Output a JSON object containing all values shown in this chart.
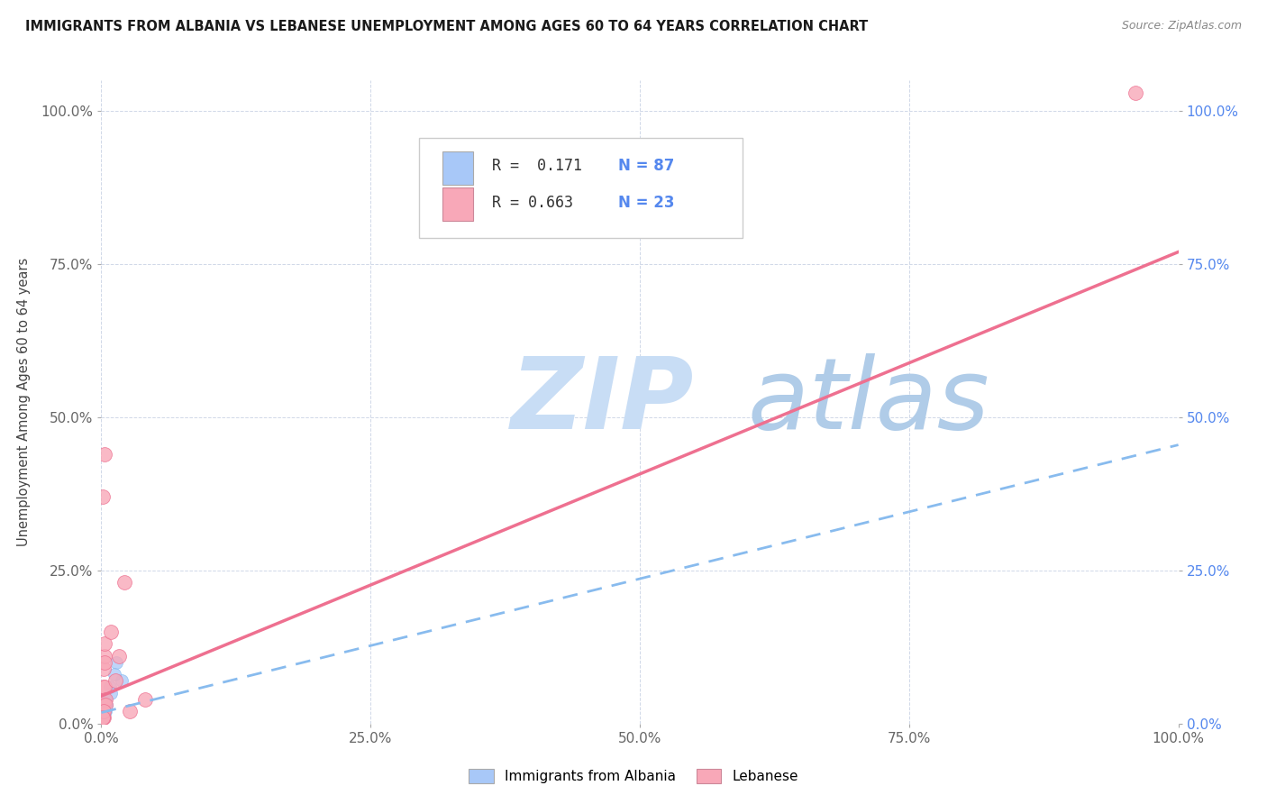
{
  "title": "IMMIGRANTS FROM ALBANIA VS LEBANESE UNEMPLOYMENT AMONG AGES 60 TO 64 YEARS CORRELATION CHART",
  "source": "Source: ZipAtlas.com",
  "ylabel": "Unemployment Among Ages 60 to 64 years",
  "r_albania": 0.171,
  "n_albania": 87,
  "r_lebanese": 0.663,
  "n_lebanese": 23,
  "color_albania": "#a8c8f8",
  "color_lebanese": "#f8a8b8",
  "line_albania_color": "#88bbee",
  "line_lebanese_color": "#ee7090",
  "watermark_zip": "ZIP",
  "watermark_atlas": "atlas",
  "watermark_color_zip": "#c8ddf5",
  "watermark_color_atlas": "#b0cce8",
  "albania_x": [
    0.002,
    0.003,
    0.001,
    0.004,
    0.002,
    0.001,
    0.003,
    0.002,
    0.003,
    0.001,
    0.004,
    0.003,
    0.002,
    0.001,
    0.002,
    0.003,
    0.001,
    0.002,
    0.001,
    0.003,
    0.003,
    0.002,
    0.001,
    0.003,
    0.002,
    0.001,
    0.002,
    0.003,
    0.001,
    0.002,
    0.004,
    0.003,
    0.002,
    0.001,
    0.002,
    0.001,
    0.003,
    0.002,
    0.001,
    0.002,
    0.001,
    0.003,
    0.002,
    0.001,
    0.003,
    0.002,
    0.004,
    0.001,
    0.002,
    0.003,
    0.001,
    0.002,
    0.001,
    0.003,
    0.002,
    0.001,
    0.004,
    0.002,
    0.001,
    0.003,
    0.002,
    0.001,
    0.002,
    0.003,
    0.001,
    0.002,
    0.003,
    0.001,
    0.002,
    0.001,
    0.003,
    0.002,
    0.001,
    0.002,
    0.003,
    0.014,
    0.001,
    0.002,
    0.003,
    0.019,
    0.008,
    0.005,
    0.012,
    0.004,
    0.001,
    0.009,
    0.002
  ],
  "albania_y": [
    0.02,
    0.04,
    0.02,
    0.03,
    0.01,
    0.01,
    0.04,
    0.02,
    0.04,
    0.01,
    0.03,
    0.02,
    0.01,
    0.01,
    0.02,
    0.03,
    0.01,
    0.02,
    0.01,
    0.02,
    0.04,
    0.02,
    0.01,
    0.03,
    0.02,
    0.01,
    0.02,
    0.03,
    0.01,
    0.02,
    0.04,
    0.03,
    0.02,
    0.01,
    0.02,
    0.01,
    0.03,
    0.02,
    0.01,
    0.02,
    0.01,
    0.03,
    0.02,
    0.01,
    0.03,
    0.02,
    0.04,
    0.01,
    0.01,
    0.03,
    0.01,
    0.02,
    0.01,
    0.02,
    0.02,
    0.01,
    0.04,
    0.02,
    0.01,
    0.03,
    0.02,
    0.01,
    0.02,
    0.03,
    0.01,
    0.02,
    0.03,
    0.01,
    0.02,
    0.01,
    0.03,
    0.02,
    0.01,
    0.02,
    0.03,
    0.1,
    0.01,
    0.02,
    0.04,
    0.07,
    0.06,
    0.03,
    0.08,
    0.02,
    0.01,
    0.05,
    0.02
  ],
  "lebanese_x": [
    0.002,
    0.002,
    0.001,
    0.003,
    0.001,
    0.002,
    0.002,
    0.003,
    0.003,
    0.001,
    0.003,
    0.004,
    0.003,
    0.004,
    0.009,
    0.013,
    0.002,
    0.016,
    0.021,
    0.026,
    0.001,
    0.041,
    0.96
  ],
  "lebanese_y": [
    0.03,
    0.06,
    0.37,
    0.44,
    0.02,
    0.01,
    0.09,
    0.11,
    0.13,
    0.01,
    0.06,
    0.04,
    0.1,
    0.03,
    0.15,
    0.07,
    0.02,
    0.11,
    0.23,
    0.02,
    0.01,
    0.04,
    1.03
  ],
  "line_leb_x0": 0.0,
  "line_leb_y0": 0.045,
  "line_leb_x1": 1.0,
  "line_leb_y1": 0.77,
  "line_alb_x0": 0.0,
  "line_alb_y0": 0.018,
  "line_alb_x1": 1.0,
  "line_alb_y1": 0.455,
  "xmin": 0.0,
  "xmax": 1.0,
  "ymin": 0.0,
  "ymax": 1.05,
  "xticks": [
    0.0,
    0.25,
    0.5,
    0.75,
    1.0
  ],
  "yticks": [
    0.0,
    0.25,
    0.5,
    0.75,
    1.0
  ],
  "left_tick_labels": [
    "0.0%",
    "25.0%",
    "50.0%",
    "75.0%",
    "100.0%"
  ],
  "right_tick_labels": [
    "0.0%",
    "25.0%",
    "50.0%",
    "75.0%",
    "100.0%"
  ],
  "bottom_tick_labels": [
    "0.0%",
    "25.0%",
    "50.0%",
    "75.0%",
    "100.0%"
  ],
  "grid_color": "#d0d8e8",
  "background_color": "#ffffff",
  "tick_color_left": "#666666",
  "tick_color_right": "#5588ee",
  "tick_color_bottom": "#666666"
}
